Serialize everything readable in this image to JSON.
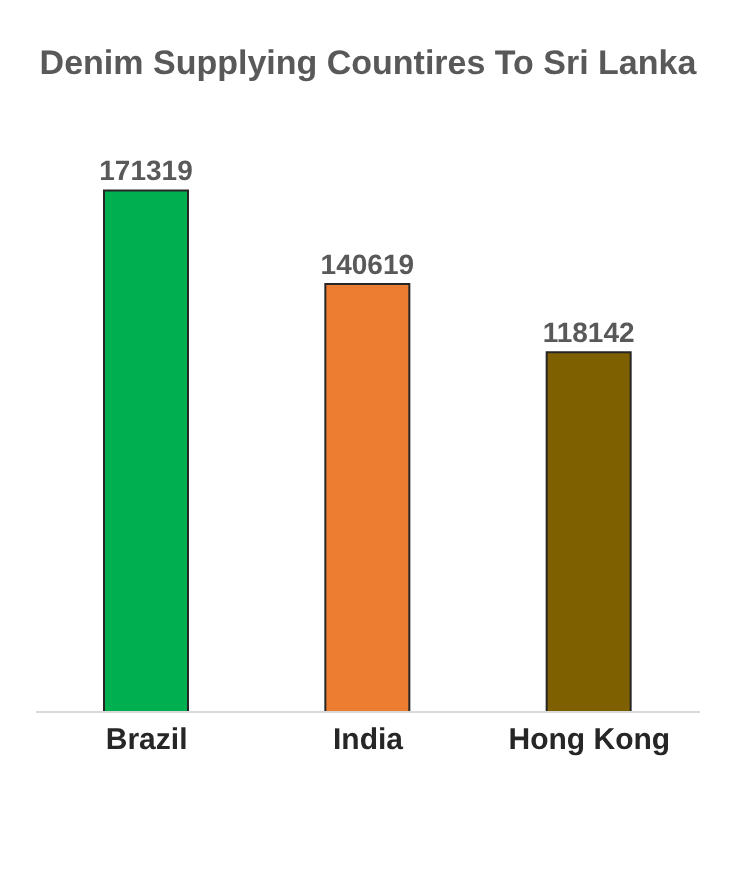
{
  "chart_data": {
    "type": "bar",
    "title": "Denim Supplying Countires To Sri Lanka",
    "categories": [
      "Brazil",
      "India",
      "Hong Kong"
    ],
    "values": [
      171319,
      140619,
      118142
    ],
    "colors": [
      "#00b050",
      "#ed7d31",
      "#7f6000"
    ],
    "data_labels": true
  }
}
